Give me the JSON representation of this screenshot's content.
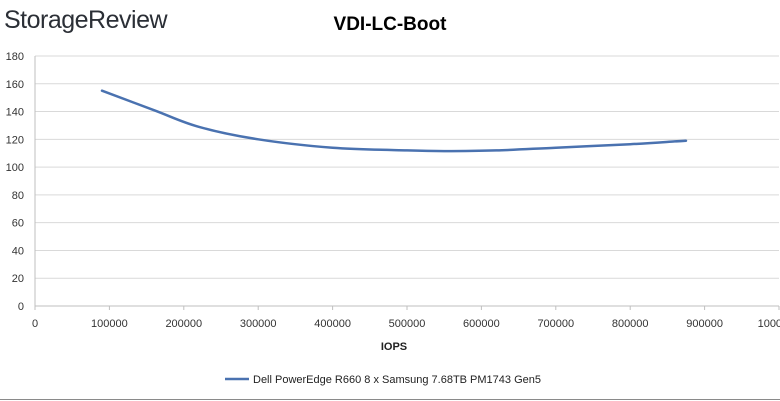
{
  "logo_text": "StorageReview",
  "chart_data": {
    "type": "line",
    "title": "VDI-LC-Boot",
    "xlabel": "IOPS",
    "ylabel": "",
    "xlim": [
      0,
      1000000
    ],
    "ylim": [
      0,
      180
    ],
    "xticks": [
      0,
      100000,
      200000,
      300000,
      400000,
      500000,
      600000,
      700000,
      800000,
      900000,
      1000000
    ],
    "xtick_labels": [
      "0",
      "100000",
      "200000",
      "300000",
      "400000",
      "500000",
      "600000",
      "700000",
      "800000",
      "900000",
      "1000000"
    ],
    "yticks": [
      0,
      20,
      40,
      60,
      80,
      100,
      120,
      140,
      160,
      180
    ],
    "ytick_labels": [
      "0",
      "20",
      "40",
      "60",
      "80",
      "100",
      "120",
      "140",
      "160",
      "180"
    ],
    "grid": true,
    "legend_position": "bottom",
    "series": [
      {
        "name": "Dell PowerEdge R660 8 x Samsung 7.68TB PM1743 Gen5",
        "color": "#4a72b0",
        "x": [
          90000,
          160000,
          220000,
          300000,
          400000,
          500000,
          550000,
          620000,
          700000,
          800000,
          860000,
          875000,
          862000
        ],
        "y": [
          155,
          141,
          129,
          120,
          114,
          112,
          111.5,
          112,
          114,
          116.5,
          118.5,
          119,
          118.5
        ]
      }
    ]
  }
}
